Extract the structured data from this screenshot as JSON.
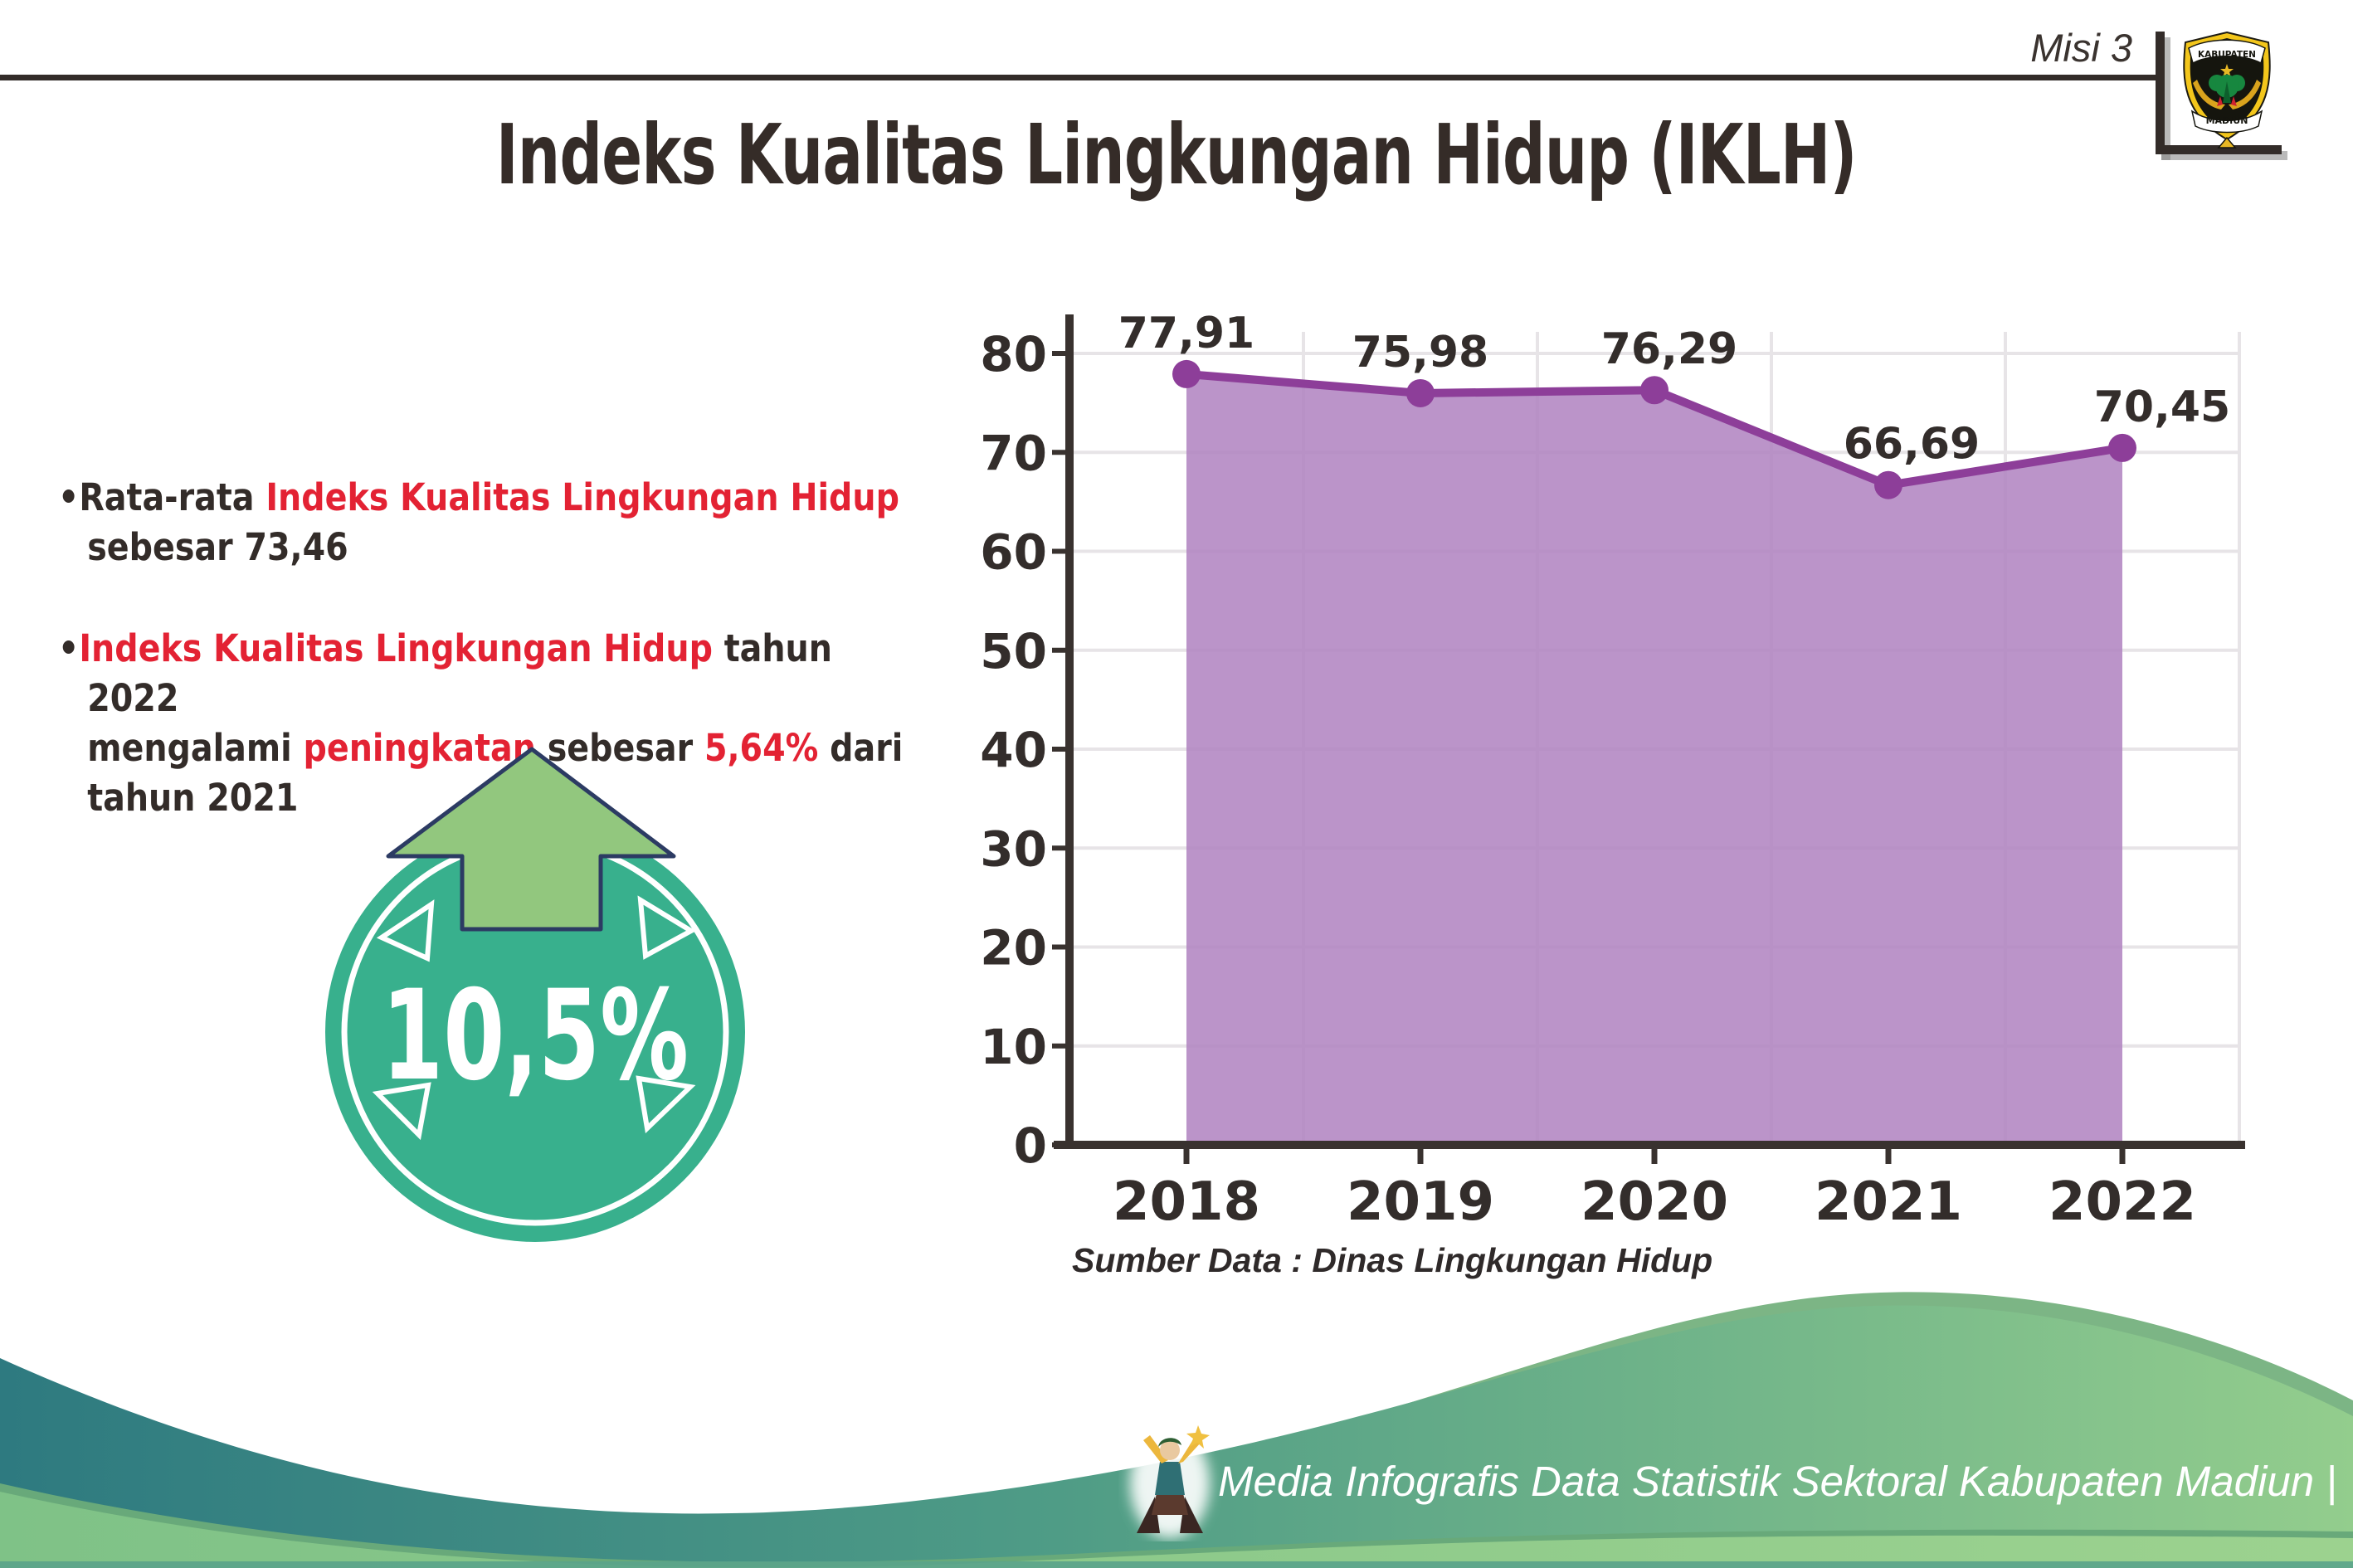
{
  "header": {
    "misi_label": "Misi 3",
    "title": "Indeks Kualitas Lingkungan Hidup (IKLH)",
    "logo": {
      "top_text": "KABUPATEN",
      "bottom_text": "MADIUN"
    }
  },
  "bullets": {
    "items": [
      {
        "segments": [
          {
            "t": "•",
            "c": "dark"
          },
          {
            "t": "Rata-rata ",
            "c": "dark"
          },
          {
            "t": "Indeks Kualitas Lingkungan Hidup",
            "c": "red"
          },
          {
            "t": "\nsebesar 73,46",
            "c": "dark"
          }
        ]
      },
      {
        "segments": [
          {
            "t": "•",
            "c": "dark"
          },
          {
            "t": "Indeks Kualitas Lingkungan Hidup",
            "c": "red"
          },
          {
            "t": " tahun 2022\nmengalami ",
            "c": "dark"
          },
          {
            "t": "peningkatan",
            "c": "red"
          },
          {
            "t": " sebesar ",
            "c": "dark"
          },
          {
            "t": "5,64%",
            "c": "red"
          },
          {
            "t": " dari\ntahun 2021",
            "c": "dark"
          }
        ]
      }
    ]
  },
  "badge": {
    "value_label": "10,5%",
    "direction": "up"
  },
  "chart_data": {
    "type": "area",
    "title": "",
    "categories": [
      "2018",
      "2019",
      "2020",
      "2021",
      "2022"
    ],
    "values": [
      77.91,
      75.98,
      76.29,
      66.69,
      70.45
    ],
    "value_labels": [
      "77,91",
      "75,98",
      "76,29",
      "66,69",
      "70,45"
    ],
    "xlabel": "",
    "ylabel": "",
    "ylim": [
      0,
      80
    ],
    "yticks": [
      0,
      10,
      20,
      30,
      40,
      50,
      60,
      70,
      80
    ],
    "grid": true,
    "legend": false,
    "source_note": "Sumber Data : Dinas Lingkungan Hidup",
    "colors": {
      "area_fill": "#b285c1",
      "line": "#8d3e99",
      "point": "#8d3e99",
      "axis": "#39322f",
      "grid": "#e7e4e7",
      "label": "#332d2b"
    }
  },
  "footer": {
    "credit_text": "Media Infografis Data Statistik Sektoral Kabupaten Madiun |"
  },
  "colors": {
    "red": "#e32233",
    "dark_text": "#332c29",
    "badge_teal": "#38b08d",
    "arrow_green": "#92c77e",
    "arrow_outline": "#2c3b63",
    "wave_teal": "#2e7a80",
    "wave_green": "#93cd8d",
    "wave_rim": "#7cb585",
    "wave_light": "#83c489",
    "rule": "#332c29"
  }
}
